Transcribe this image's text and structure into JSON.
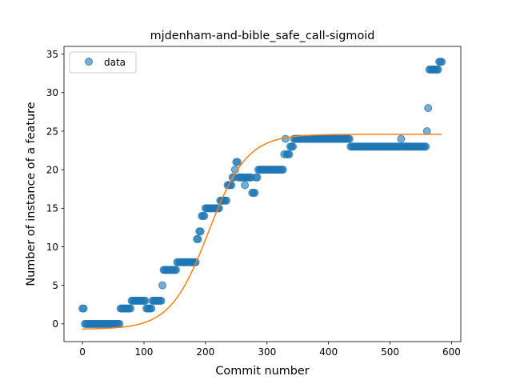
{
  "chart_data": {
    "type": "scatter",
    "title": "mjdenham-and-bible_safe_call-sigmoid",
    "xlabel": "Commit number",
    "ylabel": "Number of instance of a feature",
    "xlim": [
      -30,
      615
    ],
    "ylim": [
      -2.3,
      36
    ],
    "x_ticks": [
      0,
      100,
      200,
      300,
      400,
      500,
      600
    ],
    "y_ticks": [
      0,
      5,
      10,
      15,
      20,
      25,
      30,
      35
    ],
    "grid": false,
    "legend": {
      "position": "top-left",
      "entries": [
        "data"
      ]
    },
    "colors": {
      "data": "#1f77b4",
      "fit": "#ff7f0e"
    },
    "series": [
      {
        "name": "data",
        "style": "markers",
        "segments": [
          {
            "x_start": 0,
            "x_end": 4,
            "step": 2,
            "y": 2
          },
          {
            "x_start": 4,
            "x_end": 62,
            "step": 2,
            "y": 0
          },
          {
            "x_start": 62,
            "x_end": 80,
            "step": 2,
            "y": 2
          },
          {
            "x_start": 80,
            "x_end": 104,
            "step": 2,
            "y": 3
          },
          {
            "x_start": 104,
            "x_end": 114,
            "step": 2,
            "y": 2
          },
          {
            "x_start": 114,
            "x_end": 130,
            "step": 2,
            "y": 3
          },
          {
            "x_start": 130,
            "x_end": 132,
            "step": 2,
            "y": 5
          },
          {
            "x_start": 132,
            "x_end": 154,
            "step": 2,
            "y": 7
          },
          {
            "x_start": 154,
            "x_end": 186,
            "step": 2,
            "y": 8
          },
          {
            "x_start": 186,
            "x_end": 190,
            "step": 2,
            "y": 11
          },
          {
            "x_start": 190,
            "x_end": 194,
            "step": 2,
            "y": 12
          },
          {
            "x_start": 194,
            "x_end": 200,
            "step": 2,
            "y": 14
          },
          {
            "x_start": 200,
            "x_end": 224,
            "step": 2,
            "y": 15
          },
          {
            "x_start": 224,
            "x_end": 236,
            "step": 2,
            "y": 16
          },
          {
            "x_start": 236,
            "x_end": 244,
            "step": 2,
            "y": 18
          },
          {
            "x_start": 244,
            "x_end": 248,
            "step": 2,
            "y": 19
          },
          {
            "x_start": 248,
            "x_end": 250,
            "step": 2,
            "y": 20
          },
          {
            "x_start": 250,
            "x_end": 254,
            "step": 2,
            "y": 21
          },
          {
            "x_start": 254,
            "x_end": 264,
            "step": 2,
            "y": 19
          },
          {
            "x_start": 264,
            "x_end": 266,
            "step": 2,
            "y": 18
          },
          {
            "x_start": 266,
            "x_end": 276,
            "step": 2,
            "y": 19
          },
          {
            "x_start": 276,
            "x_end": 282,
            "step": 2,
            "y": 17
          },
          {
            "x_start": 282,
            "x_end": 286,
            "step": 2,
            "y": 19
          },
          {
            "x_start": 286,
            "x_end": 328,
            "step": 2,
            "y": 20
          },
          {
            "x_start": 328,
            "x_end": 330,
            "step": 2,
            "y": 22
          },
          {
            "x_start": 330,
            "x_end": 332,
            "step": 2,
            "y": 24
          },
          {
            "x_start": 332,
            "x_end": 338,
            "step": 2,
            "y": 22
          },
          {
            "x_start": 338,
            "x_end": 344,
            "step": 2,
            "y": 23
          },
          {
            "x_start": 344,
            "x_end": 436,
            "step": 2,
            "y": 24
          },
          {
            "x_start": 436,
            "x_end": 518,
            "step": 2,
            "y": 23
          },
          {
            "x_start": 518,
            "x_end": 520,
            "step": 2,
            "y": 24
          },
          {
            "x_start": 520,
            "x_end": 560,
            "step": 2,
            "y": 23
          },
          {
            "x_start": 560,
            "x_end": 562,
            "step": 2,
            "y": 25
          },
          {
            "x_start": 562,
            "x_end": 564,
            "step": 2,
            "y": 28
          },
          {
            "x_start": 564,
            "x_end": 580,
            "step": 2,
            "y": 33
          },
          {
            "x_start": 580,
            "x_end": 586,
            "step": 2,
            "y": 34
          }
        ]
      },
      {
        "style": "line",
        "model": "sigmoid",
        "params": {
          "L": 25.3,
          "k": 0.032,
          "x0": 205,
          "b": -0.7
        },
        "x_range": [
          0,
          584
        ]
      }
    ]
  }
}
